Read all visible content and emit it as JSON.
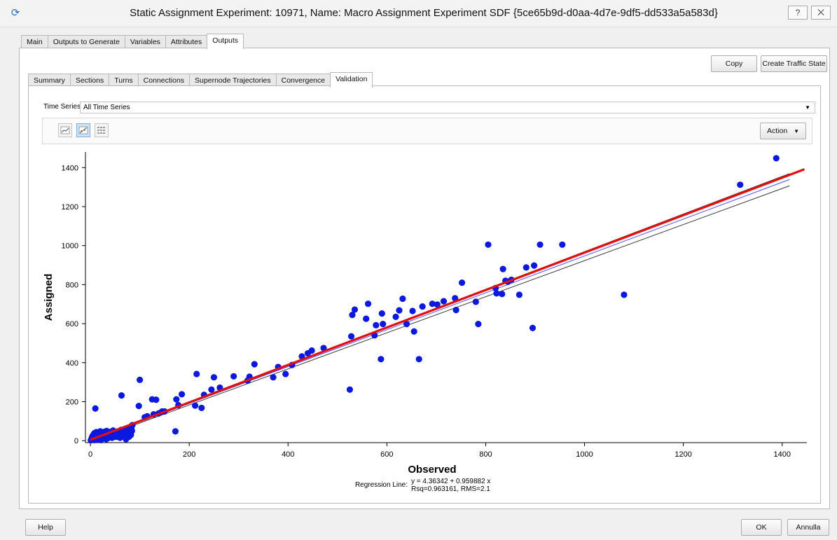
{
  "window": {
    "title": "Static Assignment Experiment: 10971, Name: Macro Assignment Experiment SDF  {5ce65b9d-d0aa-4d7e-9df5-dd533a5a583d}",
    "help_symbol": "?",
    "close_symbol": "⨉"
  },
  "main_tabs": [
    {
      "label": "Main"
    },
    {
      "label": "Outputs to Generate"
    },
    {
      "label": "Variables"
    },
    {
      "label": "Attributes"
    },
    {
      "label": "Outputs",
      "active": true
    }
  ],
  "output_tabs": [
    {
      "label": "Summary"
    },
    {
      "label": "Sections"
    },
    {
      "label": "Turns"
    },
    {
      "label": "Connections"
    },
    {
      "label": "Supernode Trajectories"
    },
    {
      "label": "Convergence"
    },
    {
      "label": "Validation",
      "active": true
    }
  ],
  "buttons": {
    "copy": "Copy",
    "create_traffic_state": "Create Traffic State",
    "action": "Action",
    "help": "Help",
    "ok": "OK",
    "cancel": "Annulla"
  },
  "time_series": {
    "label": "Time Series:",
    "value": "All Time Series"
  },
  "toolbar_icons": [
    "line-chart-icon",
    "regression-chart-icon",
    "table-grid-icon"
  ],
  "chart_data": {
    "type": "scatter",
    "xlabel": "Observed",
    "ylabel": "Assigned",
    "xlim": [
      -10,
      1450
    ],
    "ylim": [
      -10,
      1480
    ],
    "xticks": [
      0,
      200,
      400,
      600,
      800,
      1000,
      1200,
      1400
    ],
    "yticks": [
      0,
      200,
      400,
      600,
      800,
      1000,
      1200,
      1400
    ],
    "regression": {
      "intercept": 4.36342,
      "slope": 0.959882
    },
    "annotation": {
      "label": "Regression Line:",
      "line1": "y = 4.36342 + 0.959882 x",
      "line2": "Rsq=0.963161, RMS=2.1"
    },
    "colors": {
      "points": "#0b19e0",
      "regression": "#e01010",
      "reference": "#4a4af0",
      "bounds": "#333333"
    },
    "points": [
      [
        1,
        2
      ],
      [
        2,
        8
      ],
      [
        3,
        15
      ],
      [
        4,
        22
      ],
      [
        5,
        5
      ],
      [
        6,
        30
      ],
      [
        7,
        12
      ],
      [
        8,
        38
      ],
      [
        8,
        3
      ],
      [
        9,
        18
      ],
      [
        10,
        165
      ],
      [
        11,
        25
      ],
      [
        12,
        44
      ],
      [
        13,
        9
      ],
      [
        14,
        32
      ],
      [
        15,
        20
      ],
      [
        16,
        5
      ],
      [
        17,
        42
      ],
      [
        18,
        14
      ],
      [
        19,
        28
      ],
      [
        20,
        48
      ],
      [
        21,
        3
      ],
      [
        22,
        36
      ],
      [
        23,
        18
      ],
      [
        24,
        25
      ],
      [
        25,
        10
      ],
      [
        26,
        40
      ],
      [
        27,
        30
      ],
      [
        28,
        15
      ],
      [
        29,
        46
      ],
      [
        30,
        22
      ],
      [
        31,
        35
      ],
      [
        32,
        8
      ],
      [
        33,
        50
      ],
      [
        34,
        27
      ],
      [
        35,
        12
      ],
      [
        36,
        38
      ],
      [
        38,
        20
      ],
      [
        40,
        45
      ],
      [
        42,
        30
      ],
      [
        44,
        15
      ],
      [
        46,
        52
      ],
      [
        48,
        25
      ],
      [
        50,
        40
      ],
      [
        52,
        20
      ],
      [
        54,
        35
      ],
      [
        56,
        48
      ],
      [
        58,
        28
      ],
      [
        60,
        15
      ],
      [
        62,
        55
      ],
      [
        63,
        232
      ],
      [
        64,
        38
      ],
      [
        66,
        22
      ],
      [
        68,
        48
      ],
      [
        70,
        30
      ],
      [
        72,
        8
      ],
      [
        74,
        52
      ],
      [
        76,
        62
      ],
      [
        78,
        20
      ],
      [
        80,
        42
      ],
      [
        82,
        30
      ],
      [
        83,
        62
      ],
      [
        84,
        50
      ],
      [
        85,
        80
      ],
      [
        98,
        178
      ],
      [
        100,
        312
      ],
      [
        110,
        120
      ],
      [
        115,
        125
      ],
      [
        125,
        212
      ],
      [
        128,
        135
      ],
      [
        133,
        210
      ],
      [
        138,
        140
      ],
      [
        145,
        150
      ],
      [
        150,
        150
      ],
      [
        172,
        48
      ],
      [
        174,
        212
      ],
      [
        178,
        182
      ],
      [
        185,
        238
      ],
      [
        212,
        180
      ],
      [
        215,
        342
      ],
      [
        225,
        168
      ],
      [
        230,
        235
      ],
      [
        245,
        262
      ],
      [
        250,
        325
      ],
      [
        262,
        272
      ],
      [
        290,
        330
      ],
      [
        318,
        308
      ],
      [
        322,
        328
      ],
      [
        332,
        392
      ],
      [
        370,
        325
      ],
      [
        380,
        378
      ],
      [
        395,
        342
      ],
      [
        408,
        388
      ],
      [
        428,
        432
      ],
      [
        440,
        448
      ],
      [
        448,
        462
      ],
      [
        472,
        475
      ],
      [
        525,
        262
      ],
      [
        528,
        535
      ],
      [
        530,
        645
      ],
      [
        535,
        672
      ],
      [
        558,
        625
      ],
      [
        562,
        702
      ],
      [
        575,
        540
      ],
      [
        578,
        592
      ],
      [
        588,
        418
      ],
      [
        590,
        652
      ],
      [
        592,
        598
      ],
      [
        618,
        635
      ],
      [
        625,
        668
      ],
      [
        632,
        728
      ],
      [
        640,
        598
      ],
      [
        652,
        665
      ],
      [
        655,
        560
      ],
      [
        665,
        418
      ],
      [
        672,
        688
      ],
      [
        692,
        702
      ],
      [
        702,
        698
      ],
      [
        715,
        715
      ],
      [
        738,
        730
      ],
      [
        740,
        670
      ],
      [
        752,
        810
      ],
      [
        780,
        712
      ],
      [
        785,
        598
      ],
      [
        805,
        1005
      ],
      [
        820,
        782
      ],
      [
        822,
        755
      ],
      [
        833,
        752
      ],
      [
        835,
        880
      ],
      [
        840,
        820
      ],
      [
        845,
        815
      ],
      [
        852,
        825
      ],
      [
        868,
        748
      ],
      [
        882,
        888
      ],
      [
        895,
        578
      ],
      [
        898,
        898
      ],
      [
        910,
        1005
      ],
      [
        955,
        1005
      ],
      [
        1080,
        748
      ],
      [
        1315,
        1312
      ],
      [
        1388,
        1448
      ]
    ]
  }
}
